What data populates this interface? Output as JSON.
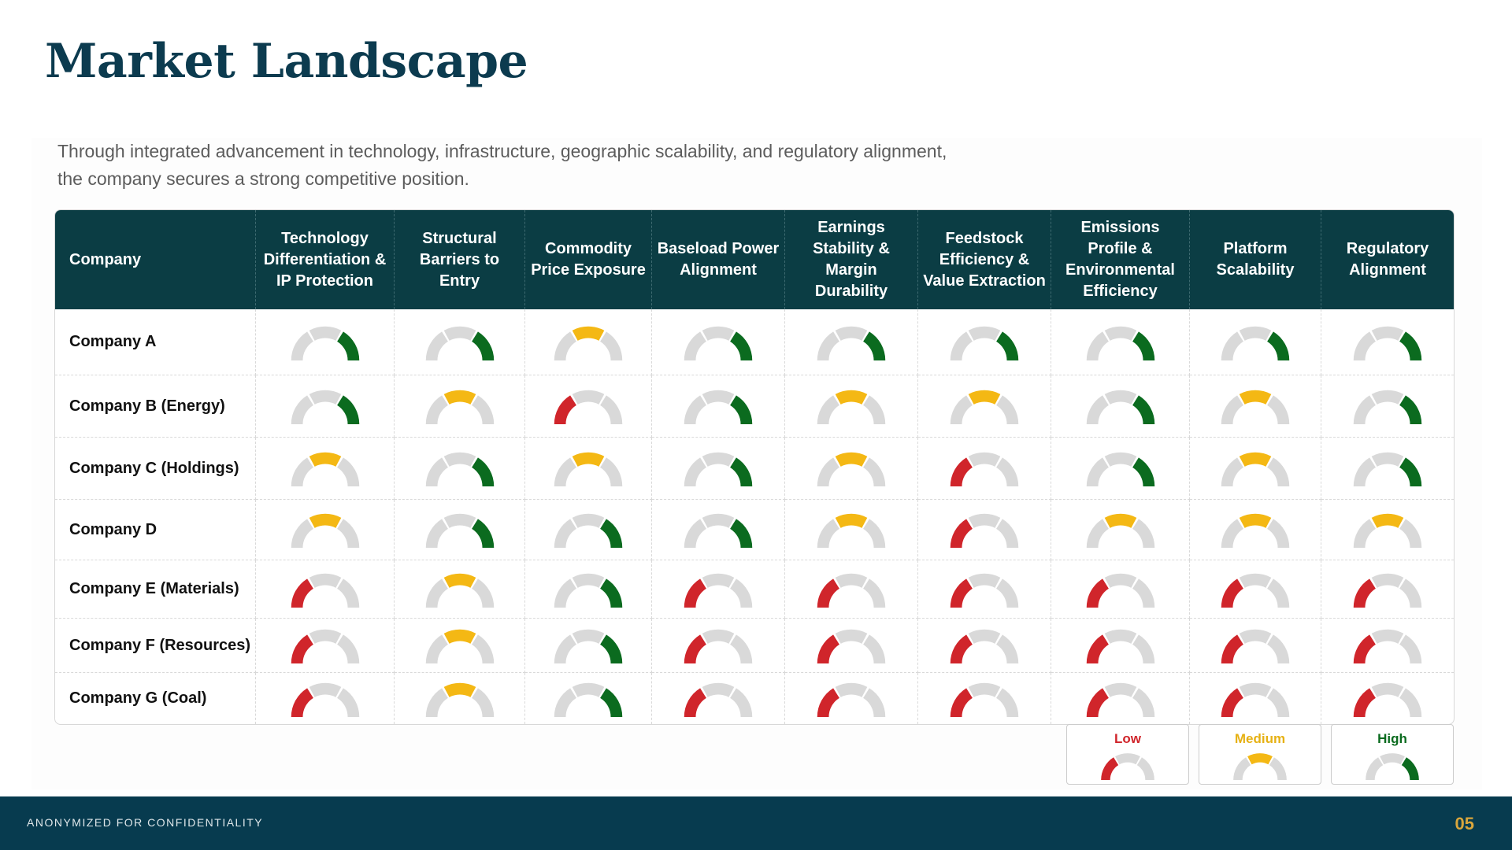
{
  "title": "Market Landscape",
  "subtitle_lines": [
    "Through integrated advancement in technology, infrastructure, geographic scalability, and regulatory alignment,",
    "the company secures a strong competitive position."
  ],
  "table": {
    "columns": [
      "Company",
      "Technology Differentiation & IP Protection",
      "Structural Barriers to Entry",
      "Commodity Price Exposure",
      "Baseload Power Alignment",
      "Earnings Stability & Margin Durability",
      "Feedstock Efficiency & Value Extraction",
      "Emissions Profile & Environmental Efficiency",
      "Platform Scalability",
      "Regulatory Alignment"
    ],
    "rows": [
      {
        "company": "Company A",
        "ratings": [
          "high",
          "high",
          "medium",
          "high",
          "high",
          "high",
          "high",
          "high",
          "high"
        ]
      },
      {
        "company": "Company B (Energy)",
        "ratings": [
          "high",
          "medium",
          "low",
          "high",
          "medium",
          "medium",
          "high",
          "medium",
          "high"
        ]
      },
      {
        "company": "Company C (Holdings)",
        "ratings": [
          "medium",
          "high",
          "medium",
          "high",
          "medium",
          "low",
          "high",
          "medium",
          "high"
        ]
      },
      {
        "company": "Company D",
        "ratings": [
          "medium",
          "high",
          "high",
          "high",
          "medium",
          "low",
          "medium",
          "medium",
          "medium"
        ]
      },
      {
        "company": "Company E (Materials)",
        "ratings": [
          "low",
          "medium",
          "high",
          "low",
          "low",
          "low",
          "low",
          "low",
          "low"
        ]
      },
      {
        "company": "Company F (Resources)",
        "ratings": [
          "low",
          "medium",
          "high",
          "low",
          "low",
          "low",
          "low",
          "low",
          "low"
        ]
      },
      {
        "company": "Company G (Coal)",
        "ratings": [
          "low",
          "medium",
          "high",
          "low",
          "low",
          "low",
          "low",
          "low",
          "low"
        ]
      }
    ]
  },
  "legend": {
    "low": "Low",
    "medium": "Medium",
    "high": "High"
  },
  "colors": {
    "low": "#d0252b",
    "medium": "#f4b814",
    "high": "#0b6b1f",
    "inactive": "#d9d9d9",
    "header_bg": "#0b3d44",
    "footer_bg": "#073b4f",
    "page_number": "#d9a63c"
  },
  "footer": {
    "text": "ANONYMIZED FOR CONFIDENTIALITY",
    "page_number": "05"
  }
}
